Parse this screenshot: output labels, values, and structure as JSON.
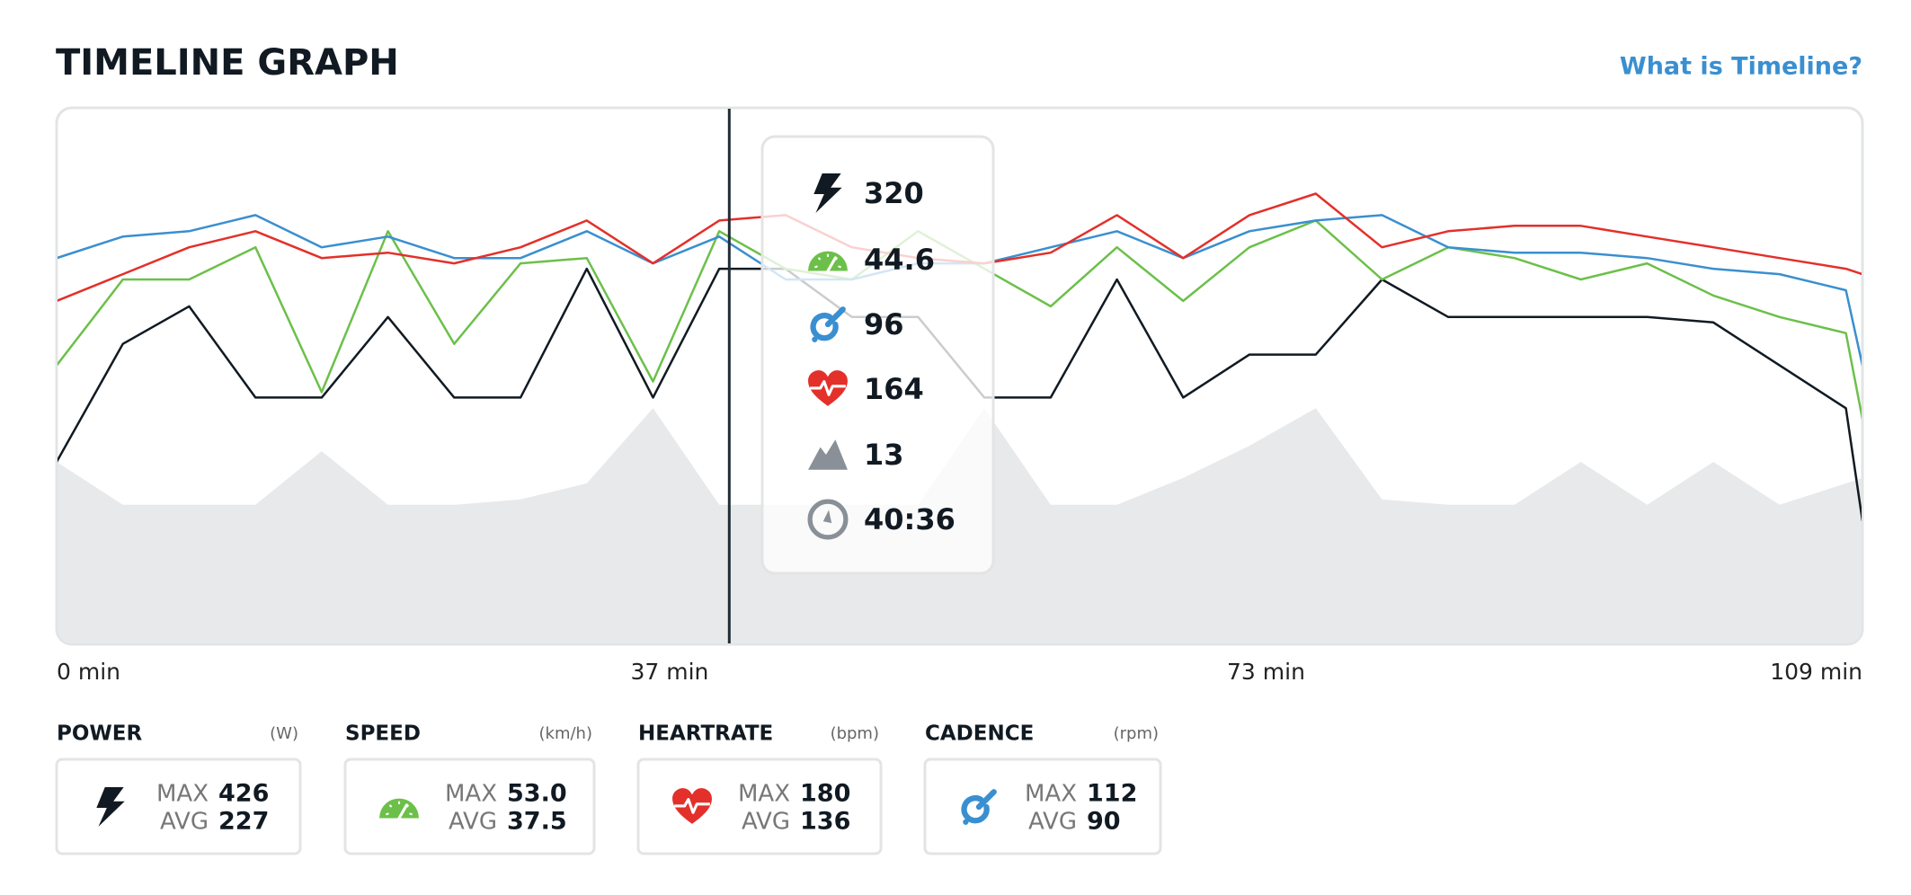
{
  "header": {
    "title": "TIMELINE GRAPH",
    "link": "What is Timeline?"
  },
  "chart_data": {
    "type": "line",
    "xlim": [
      0,
      109
    ],
    "ylim": [
      0,
      100
    ],
    "xticks": [
      {
        "value": 0,
        "label": "0 min"
      },
      {
        "value": 37,
        "label": "37 min"
      },
      {
        "value": 73,
        "label": "73 min"
      },
      {
        "value": 109,
        "label": "109 min"
      }
    ],
    "x": [
      0,
      4,
      8,
      12,
      16,
      20,
      24,
      28,
      32,
      36,
      40,
      44,
      48,
      52,
      56,
      60,
      64,
      68,
      72,
      76,
      80,
      84,
      88,
      92,
      96,
      100,
      104,
      108,
      109
    ],
    "series": [
      {
        "color": "#e8e9ea",
        "area": true,
        "values": [
          34,
          26,
          26,
          26,
          36,
          26,
          26,
          27,
          30,
          44,
          26,
          26,
          26,
          26,
          44,
          26,
          26,
          31,
          37,
          44,
          27,
          26,
          26,
          34,
          26,
          34,
          26,
          30,
          31
        ]
      },
      {
        "color": "#111a22",
        "values": [
          34,
          56,
          63,
          46,
          46,
          61,
          46,
          46,
          70,
          46,
          70,
          70,
          61,
          61,
          46,
          46,
          68,
          46,
          54,
          54,
          68,
          61,
          61,
          61,
          61,
          60,
          52,
          44,
          23
        ]
      },
      {
        "color": "#6cc04a",
        "values": [
          52,
          68,
          68,
          74,
          47,
          77,
          56,
          71,
          72,
          49,
          77,
          70,
          68,
          77,
          70,
          63,
          74,
          64,
          74,
          79,
          68,
          74,
          72,
          68,
          71,
          65,
          61,
          58,
          42
        ]
      },
      {
        "color": "#3a8fd0",
        "values": [
          72,
          76,
          77,
          80,
          74,
          76,
          72,
          72,
          77,
          71,
          76,
          68,
          68,
          71,
          71,
          74,
          77,
          72,
          77,
          79,
          80,
          74,
          73,
          73,
          72,
          70,
          69,
          66,
          52
        ]
      },
      {
        "color": "#e3302a",
        "values": [
          64,
          69,
          74,
          77,
          72,
          73,
          71,
          74,
          79,
          71,
          79,
          80,
          74,
          72,
          71,
          73,
          80,
          72,
          80,
          84,
          74,
          77,
          78,
          78,
          76,
          74,
          72,
          70,
          69
        ]
      }
    ]
  },
  "readout": [
    "320",
    "44.6",
    "96",
    "164",
    "13",
    "40:36"
  ],
  "stats": [
    {
      "label": "POWER",
      "unit": "(W)",
      "max_label": "MAX",
      "max": "426",
      "avg_label": "AVG",
      "avg": "227"
    },
    {
      "label": "SPEED",
      "unit": "(km/h)",
      "max_label": "MAX",
      "max": "53.0",
      "avg_label": "AVG",
      "avg": "37.5"
    },
    {
      "label": "HEARTRATE",
      "unit": "(bpm)",
      "max_label": "MAX",
      "max": "180",
      "avg_label": "AVG",
      "avg": "136"
    },
    {
      "label": "CADENCE",
      "unit": "(rpm)",
      "max_label": "MAX",
      "max": "112",
      "avg_label": "AVG",
      "avg": "90"
    }
  ]
}
